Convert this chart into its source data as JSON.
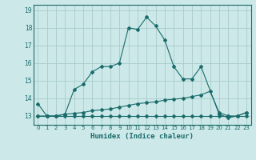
{
  "xlabel": "Humidex (Indice chaleur)",
  "background_color": "#cce8e8",
  "grid_color": "#aacccc",
  "line_color": "#1a6b6b",
  "xlim": [
    -0.5,
    23.5
  ],
  "ylim": [
    12.5,
    19.3
  ],
  "xticks": [
    0,
    1,
    2,
    3,
    4,
    5,
    6,
    7,
    8,
    9,
    10,
    11,
    12,
    13,
    14,
    15,
    16,
    17,
    18,
    19,
    20,
    21,
    22,
    23
  ],
  "yticks": [
    13,
    14,
    15,
    16,
    17,
    18,
    19
  ],
  "curve1_x": [
    0,
    1,
    2,
    3,
    4,
    5,
    6,
    7,
    8,
    9,
    10,
    11,
    12,
    13,
    14,
    15,
    16,
    17,
    18,
    20,
    21,
    22,
    23
  ],
  "curve1_y": [
    13.7,
    13.0,
    13.0,
    13.1,
    14.5,
    14.8,
    15.5,
    15.8,
    15.8,
    16.0,
    18.0,
    17.9,
    18.6,
    18.1,
    17.3,
    15.8,
    15.1,
    15.1,
    15.8,
    13.1,
    12.9,
    13.0,
    13.2
  ],
  "curve2_x": [
    0,
    1,
    2,
    3,
    4,
    5,
    6,
    7,
    8,
    9,
    10,
    11,
    12,
    13,
    14,
    15,
    16,
    17,
    18,
    19,
    20,
    21,
    22,
    23
  ],
  "curve2_y": [
    13.0,
    13.0,
    13.0,
    13.0,
    13.0,
    13.0,
    13.0,
    13.0,
    13.0,
    13.0,
    13.0,
    13.0,
    13.0,
    13.0,
    13.0,
    13.0,
    13.0,
    13.0,
    13.0,
    13.0,
    13.0,
    13.0,
    13.0,
    13.0
  ],
  "curve3_x": [
    0,
    1,
    2,
    3,
    4,
    5,
    6,
    7,
    8,
    9,
    10,
    11,
    12,
    13,
    14,
    15,
    16,
    17,
    18,
    19,
    20,
    21,
    22,
    23
  ],
  "curve3_y": [
    13.0,
    13.0,
    13.0,
    13.1,
    13.15,
    13.2,
    13.3,
    13.35,
    13.4,
    13.5,
    13.6,
    13.7,
    13.75,
    13.8,
    13.9,
    13.95,
    14.0,
    14.1,
    14.2,
    14.4,
    13.2,
    13.0,
    13.0,
    13.2
  ]
}
